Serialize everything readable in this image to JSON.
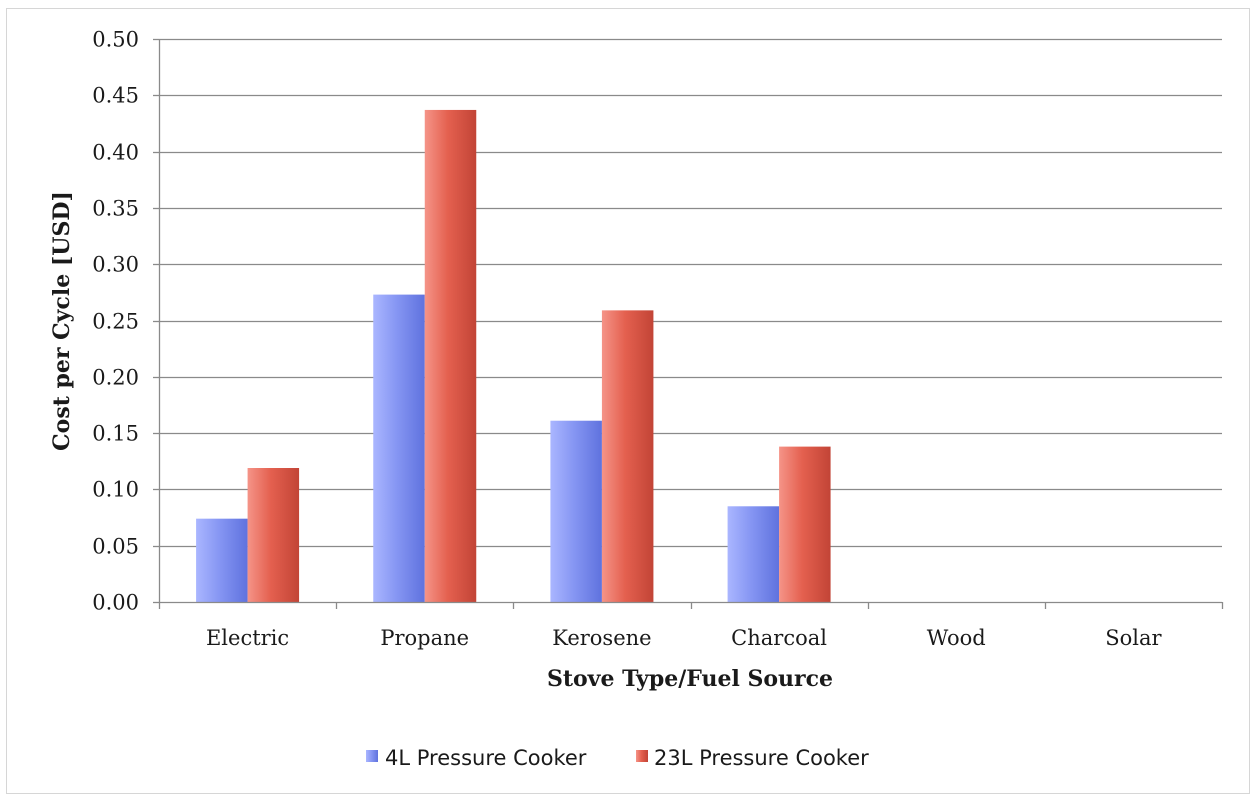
{
  "chart_data": {
    "type": "bar",
    "title": "",
    "xlabel": "Stove Type/Fuel Source",
    "ylabel": "Cost per Cycle [USD]",
    "ylim": [
      0,
      0.5
    ],
    "yticks": [
      "0.00",
      "0.05",
      "0.10",
      "0.15",
      "0.20",
      "0.25",
      "0.30",
      "0.35",
      "0.40",
      "0.45",
      "0.50"
    ],
    "grid": true,
    "legend_position": "bottom",
    "categories": [
      "Electric",
      "Propane",
      "Kerosene",
      "Charcoal",
      "Wood",
      "Solar"
    ],
    "series": [
      {
        "name": "4L Pressure Cooker",
        "color": "#7f8ff0",
        "values": [
          0.074,
          0.273,
          0.161,
          0.085,
          0,
          0
        ]
      },
      {
        "name": "23L Pressure Cooker",
        "color": "#e05a4c",
        "values": [
          0.119,
          0.437,
          0.259,
          0.138,
          0,
          0
        ]
      }
    ]
  }
}
